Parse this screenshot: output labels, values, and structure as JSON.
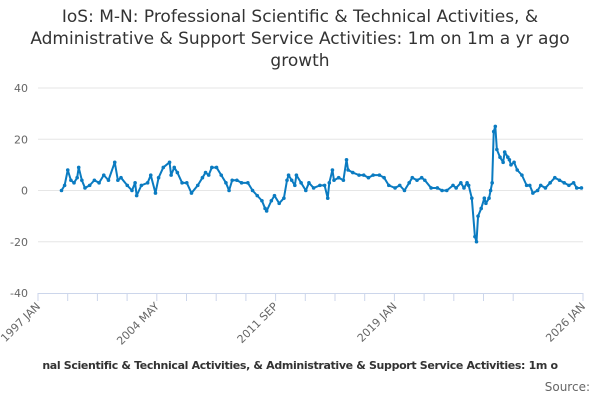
{
  "chart_data": {
    "type": "line",
    "title": "IoS: M-N: Professional Scientific & Technical Activities, & Administrative & Support Service Activities: 1m on 1m a yr ago growth",
    "xlabel": "",
    "ylabel": "",
    "ylim": [
      -40,
      40
    ],
    "yticks": [
      40,
      20,
      0,
      -20,
      -40
    ],
    "xrange": [
      "1997 JAN",
      "2026 JAN"
    ],
    "xtick_labels": [
      "1997 JAN",
      "2004 MAY",
      "2011 SEP",
      "2019 JAN",
      "2026 JAN"
    ],
    "grid": true,
    "legend": "none",
    "color": "#0a7bc1",
    "series": [
      {
        "points": [
          [
            "1998 Apr",
            0
          ],
          [
            "1998 Jun",
            2
          ],
          [
            "1998 Aug",
            8
          ],
          [
            "1998 Oct",
            4
          ],
          [
            "1998 Dec",
            3
          ],
          [
            "1999 Feb",
            5
          ],
          [
            "1999 Mar",
            9
          ],
          [
            "1999 May",
            4
          ],
          [
            "1999 Jul",
            1
          ],
          [
            "1999 Oct",
            2
          ],
          [
            "2000 Jan",
            4
          ],
          [
            "2000 Apr",
            3
          ],
          [
            "2000 Jul",
            6
          ],
          [
            "2000 Oct",
            4
          ],
          [
            "2001 Feb",
            11
          ],
          [
            "2001 Apr",
            4
          ],
          [
            "2001 Jun",
            5
          ],
          [
            "2001 Oct",
            2
          ],
          [
            "2002 Jan",
            0
          ],
          [
            "2002 Mar",
            3
          ],
          [
            "2002 Apr",
            -2
          ],
          [
            "2002 Jul",
            2
          ],
          [
            "2002 Nov",
            3
          ],
          [
            "2003 Jan",
            6
          ],
          [
            "2003 Apr",
            -1
          ],
          [
            "2003 Jun",
            5
          ],
          [
            "2003 Sep",
            9
          ],
          [
            "2004 Jan",
            11
          ],
          [
            "2004 Feb",
            6
          ],
          [
            "2004 Apr",
            9
          ],
          [
            "2004 Jun",
            7
          ],
          [
            "2004 Sep",
            3
          ],
          [
            "2004 Dec",
            3
          ],
          [
            "2005 Mar",
            -1
          ],
          [
            "2005 Jul",
            2
          ],
          [
            "2005 Oct",
            5
          ],
          [
            "2005 Dec",
            7
          ],
          [
            "2006 Feb",
            6
          ],
          [
            "2006 Apr",
            9
          ],
          [
            "2006 Jul",
            9
          ],
          [
            "2006 Oct",
            6
          ],
          [
            "2007 Jan",
            3
          ],
          [
            "2007 Mar",
            0
          ],
          [
            "2007 May",
            4
          ],
          [
            "2007 Aug",
            4
          ],
          [
            "2007 Nov",
            3
          ],
          [
            "2008 Mar",
            3
          ],
          [
            "2008 Jun",
            0
          ],
          [
            "2008 Sep",
            -2
          ],
          [
            "2008 Dec",
            -4
          ],
          [
            "2009 Feb",
            -7
          ],
          [
            "2009 Mar",
            -8
          ],
          [
            "2009 Jun",
            -4
          ],
          [
            "2009 Aug",
            -2
          ],
          [
            "2009 Nov",
            -5
          ],
          [
            "2010 Feb",
            -3
          ],
          [
            "2010 Apr",
            4
          ],
          [
            "2010 May",
            6
          ],
          [
            "2010 Jul",
            4
          ],
          [
            "2010 Sep",
            2
          ],
          [
            "2010 Oct",
            6
          ],
          [
            "2011 Jan",
            3
          ],
          [
            "2011 Apr",
            0
          ],
          [
            "2011 Jun",
            3
          ],
          [
            "2011 Sep",
            1
          ],
          [
            "2012 Jan",
            2
          ],
          [
            "2012 Apr",
            2
          ],
          [
            "2012 Jun",
            -3
          ],
          [
            "2012 Jul",
            3
          ],
          [
            "2012 Sep",
            8
          ],
          [
            "2012 Oct",
            4
          ],
          [
            "2013 Jan",
            5
          ],
          [
            "2013 Apr",
            4
          ],
          [
            "2013 Jun",
            12
          ],
          [
            "2013 Jul",
            8
          ],
          [
            "2013 Oct",
            7
          ],
          [
            "2014 Feb",
            6
          ],
          [
            "2014 May",
            6
          ],
          [
            "2014 Aug",
            5
          ],
          [
            "2014 Nov",
            6
          ],
          [
            "2015 Mar",
            6
          ],
          [
            "2015 Jun",
            5
          ],
          [
            "2015 Sep",
            2
          ],
          [
            "2016 Jan",
            1
          ],
          [
            "2016 Apr",
            2
          ],
          [
            "2016 Jul",
            0
          ],
          [
            "2016 Oct",
            3
          ],
          [
            "2016 Dec",
            5
          ],
          [
            "2017 Mar",
            4
          ],
          [
            "2017 Jun",
            5
          ],
          [
            "2017 Aug",
            4
          ],
          [
            "2017 Dec",
            1
          ],
          [
            "2018 Apr",
            1
          ],
          [
            "2018 Jul",
            0
          ],
          [
            "2018 Oct",
            0
          ],
          [
            "2019 Feb",
            2
          ],
          [
            "2019 Apr",
            1
          ],
          [
            "2019 Jul",
            3
          ],
          [
            "2019 Sep",
            1
          ],
          [
            "2019 Nov",
            3
          ],
          [
            "2019 Dec",
            2
          ],
          [
            "2020 Feb",
            -3
          ],
          [
            "2020 Apr",
            -18
          ],
          [
            "2020 May",
            -20
          ],
          [
            "2020 Jun",
            -10
          ],
          [
            "2020 Aug",
            -7
          ],
          [
            "2020 Oct",
            -3
          ],
          [
            "2020 Nov",
            -5
          ],
          [
            "2021 Jan",
            -3
          ],
          [
            "2021 Feb",
            0
          ],
          [
            "2021 Mar",
            3
          ],
          [
            "2021 Apr",
            23
          ],
          [
            "2021 May",
            25
          ],
          [
            "2021 Jun",
            16
          ],
          [
            "2021 Aug",
            13
          ],
          [
            "2021 Oct",
            11
          ],
          [
            "2021 Nov",
            15
          ],
          [
            "2022 Jan",
            13
          ],
          [
            "2022 Feb",
            12
          ],
          [
            "2022 Mar",
            10
          ],
          [
            "2022 May",
            11
          ],
          [
            "2022 Jul",
            8
          ],
          [
            "2022 Oct",
            6
          ],
          [
            "2023 Jan",
            2
          ],
          [
            "2023 Mar",
            2
          ],
          [
            "2023 May",
            -1
          ],
          [
            "2023 Aug",
            0
          ],
          [
            "2023 Oct",
            2
          ],
          [
            "2024 Jan",
            1
          ],
          [
            "2024 Apr",
            3
          ],
          [
            "2024 Jul",
            5
          ],
          [
            "2024 Oct",
            4
          ],
          [
            "2025 Jan",
            3
          ],
          [
            "2025 Apr",
            2
          ],
          [
            "2025 Jul",
            3
          ],
          [
            "2025 Sep",
            1
          ],
          [
            "2025 Dec",
            1
          ]
        ]
      }
    ],
    "footer": "nal Scientific & Technical Activities, & Administrative & Support Service Activities: 1m o",
    "source": "Source:"
  }
}
